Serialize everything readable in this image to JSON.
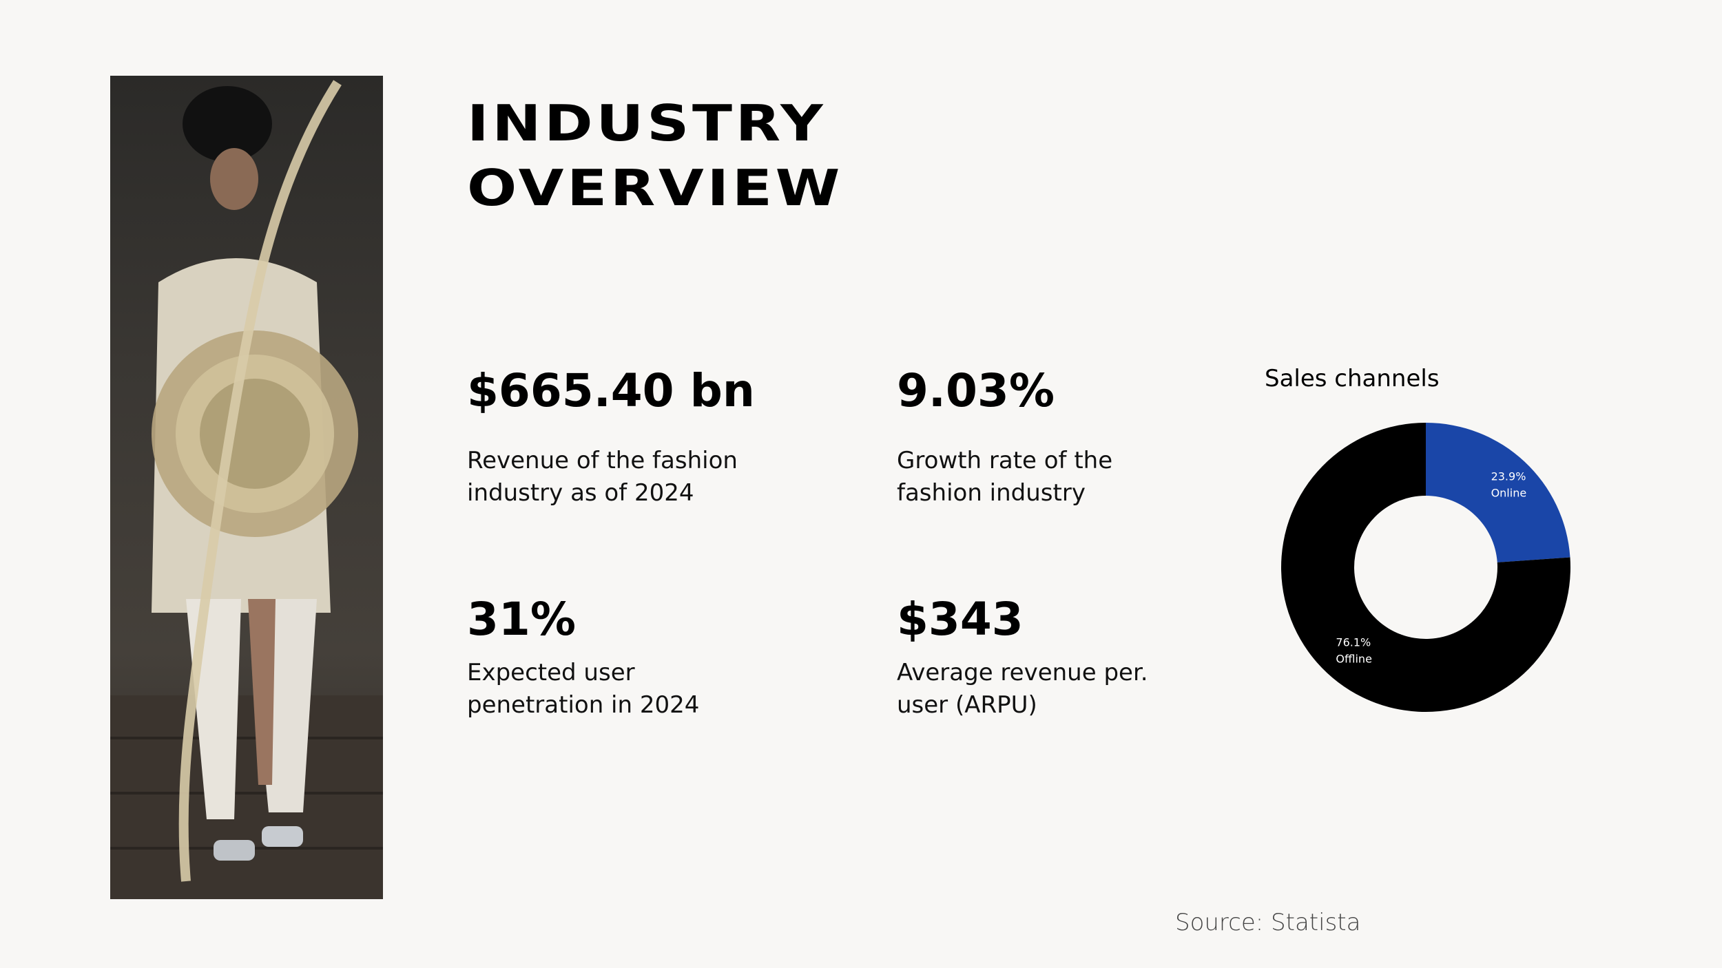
{
  "title": {
    "line1": "INDUSTRY",
    "line2": "OVERVIEW"
  },
  "stats": [
    {
      "value": "$665.40 bn",
      "desc_line1": "Revenue of the fashion",
      "desc_line2": "industry as of 2024"
    },
    {
      "value": "9.03%",
      "desc_line1": "Growth rate of the",
      "desc_line2": "fashion industry"
    },
    {
      "value": "31%",
      "desc_line1": "Expected user",
      "desc_line2": "penetration in 2024"
    },
    {
      "value": "$343",
      "desc_line1": "Average revenue per.",
      "desc_line2": "user (ARPU)"
    }
  ],
  "source": "Source: Statista",
  "chart_data": {
    "type": "pie",
    "title": "Sales channels",
    "categories": [
      "Online",
      "Offline"
    ],
    "values": [
      23.9,
      76.1
    ],
    "value_labels": [
      "23.9%",
      "76.1%"
    ],
    "colors": [
      "#1a46a8",
      "#000000"
    ],
    "donut": true
  }
}
